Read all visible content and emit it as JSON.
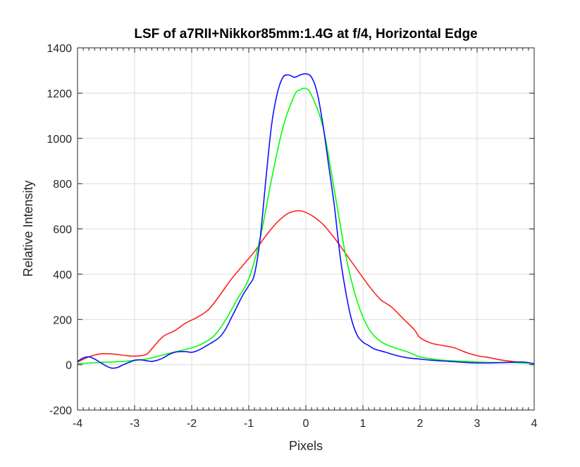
{
  "chart_data": {
    "type": "line",
    "title": "LSF of a7RII+Nikkor85mm:1.4G at f/4, Horizontal Edge",
    "xlabel": "Pixels",
    "ylabel": "Relative Intensity",
    "xlim": [
      -4,
      4
    ],
    "ylim": [
      -200,
      1400
    ],
    "xticks": [
      -4,
      -3,
      -2,
      -1,
      0,
      1,
      2,
      3,
      4
    ],
    "yticks": [
      -200,
      0,
      200,
      400,
      600,
      800,
      1000,
      1200,
      1400
    ],
    "grid": true,
    "legend": "none",
    "series": [
      {
        "color": "#ff2020",
        "x": [
          -4,
          -3.8,
          -3.6,
          -3.4,
          -3.2,
          -3.0,
          -2.8,
          -2.7,
          -2.5,
          -2.3,
          -2.1,
          -1.9,
          -1.7,
          -1.5,
          -1.3,
          -1.1,
          -0.9,
          -0.7,
          -0.5,
          -0.3,
          -0.1,
          0.1,
          0.3,
          0.5,
          0.7,
          0.9,
          1.1,
          1.3,
          1.5,
          1.7,
          1.9,
          2.0,
          2.2,
          2.4,
          2.6,
          2.8,
          3.0,
          3.2,
          3.4,
          3.6,
          3.8,
          4.0
        ],
        "y": [
          12,
          35,
          48,
          48,
          42,
          38,
          45,
          70,
          125,
          150,
          185,
          210,
          245,
          310,
          380,
          440,
          500,
          570,
          630,
          670,
          680,
          660,
          620,
          560,
          490,
          420,
          350,
          290,
          255,
          205,
          155,
          120,
          95,
          85,
          75,
          55,
          40,
          32,
          22,
          15,
          10,
          5
        ]
      },
      {
        "color": "#00ff00",
        "x": [
          -4,
          -3.6,
          -3.2,
          -2.8,
          -2.4,
          -2.0,
          -1.8,
          -1.6,
          -1.4,
          -1.2,
          -1.0,
          -0.8,
          -0.6,
          -0.4,
          -0.2,
          -0.1,
          0.0,
          0.1,
          0.3,
          0.5,
          0.7,
          0.9,
          1.1,
          1.3,
          1.5,
          1.8,
          2.0,
          2.4,
          2.8,
          3.2,
          3.6,
          4.0
        ],
        "y": [
          5,
          10,
          15,
          25,
          50,
          75,
          95,
          130,
          200,
          290,
          380,
          560,
          820,
          1050,
          1190,
          1215,
          1220,
          1190,
          1050,
          770,
          480,
          280,
          160,
          105,
          80,
          55,
          35,
          20,
          15,
          10,
          10,
          5
        ]
      },
      {
        "color": "#1010ff",
        "x": [
          -4,
          -3.9,
          -3.8,
          -3.7,
          -3.6,
          -3.5,
          -3.4,
          -3.3,
          -3.2,
          -3.1,
          -3.0,
          -2.9,
          -2.8,
          -2.7,
          -2.6,
          -2.5,
          -2.4,
          -2.3,
          -2.2,
          -2.1,
          -2.0,
          -1.9,
          -1.8,
          -1.7,
          -1.6,
          -1.5,
          -1.4,
          -1.3,
          -1.2,
          -1.1,
          -1.0,
          -0.9,
          -0.8,
          -0.7,
          -0.6,
          -0.5,
          -0.4,
          -0.3,
          -0.2,
          -0.1,
          0.0,
          0.1,
          0.2,
          0.3,
          0.4,
          0.5,
          0.6,
          0.7,
          0.8,
          0.9,
          1.0,
          1.1,
          1.2,
          1.4,
          1.6,
          1.8,
          2.0,
          2.2,
          2.5,
          2.8,
          3.0,
          3.2,
          3.5,
          3.8,
          4.0
        ],
        "y": [
          15,
          30,
          35,
          25,
          10,
          -5,
          -15,
          -12,
          0,
          10,
          20,
          22,
          18,
          15,
          20,
          30,
          45,
          55,
          58,
          58,
          55,
          62,
          75,
          90,
          105,
          125,
          160,
          210,
          260,
          310,
          350,
          400,
          560,
          820,
          1060,
          1200,
          1270,
          1280,
          1270,
          1280,
          1285,
          1270,
          1200,
          1060,
          880,
          700,
          480,
          320,
          200,
          130,
          100,
          85,
          70,
          55,
          40,
          30,
          25,
          20,
          15,
          10,
          8,
          8,
          10,
          12,
          5
        ]
      }
    ]
  }
}
